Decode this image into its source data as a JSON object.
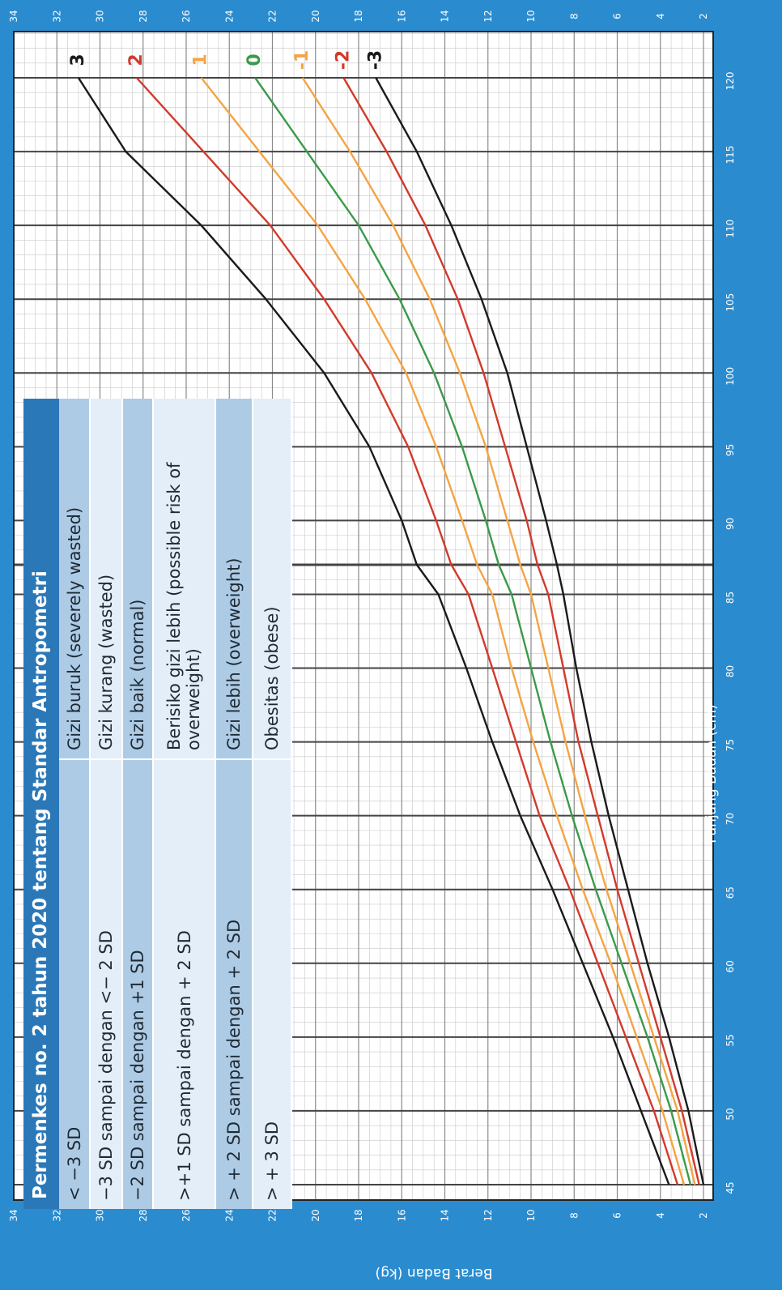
{
  "chart_data": {
    "type": "line",
    "xlabel": "Panjang Badan (cm)",
    "ylabel": "Berat Badan (kg)",
    "xlim": [
      45,
      120
    ],
    "ylim": [
      2,
      34
    ],
    "x_ticks": [
      45,
      50,
      55,
      60,
      65,
      70,
      75,
      80,
      85,
      90,
      95,
      100,
      105,
      110,
      115,
      120
    ],
    "y_ticks": [
      2,
      4,
      6,
      8,
      10,
      12,
      14,
      16,
      18,
      20,
      22,
      24,
      26,
      28,
      30,
      32,
      34
    ],
    "orientation": "rotated-90",
    "grid": true,
    "x": [
      45,
      50,
      55,
      60,
      65,
      70,
      75,
      80,
      85,
      87,
      90,
      95,
      100,
      105,
      110,
      115,
      120
    ],
    "series": [
      {
        "name": "3",
        "color": "#1a1a1a",
        "values": [
          3.6,
          4.9,
          6.2,
          7.6,
          9.0,
          10.5,
          11.8,
          13.0,
          14.3,
          15.3,
          16.0,
          17.5,
          19.6,
          22.3,
          25.3,
          28.8,
          31.0
        ]
      },
      {
        "name": "2",
        "color": "#d23a2c",
        "values": [
          3.2,
          4.3,
          5.6,
          6.9,
          8.2,
          9.6,
          10.7,
          11.8,
          12.9,
          13.7,
          14.4,
          15.7,
          17.4,
          19.6,
          22.1,
          25.2,
          28.3
        ]
      },
      {
        "name": "1",
        "color": "#f4a443",
        "values": [
          2.9,
          3.9,
          5.1,
          6.3,
          7.6,
          8.8,
          9.9,
          10.9,
          11.8,
          12.5,
          13.2,
          14.4,
          15.8,
          17.7,
          19.9,
          22.6,
          25.3
        ]
      },
      {
        "name": "0",
        "color": "#3b9a4a",
        "values": [
          2.6,
          3.5,
          4.6,
          5.8,
          7.0,
          8.1,
          9.1,
          10.0,
          10.9,
          11.5,
          12.1,
          13.2,
          14.5,
          16.1,
          18.0,
          20.4,
          22.8
        ]
      },
      {
        "name": "-1",
        "color": "#f4a443",
        "values": [
          2.4,
          3.2,
          4.3,
          5.4,
          6.5,
          7.5,
          8.4,
          9.2,
          10.0,
          10.5,
          11.1,
          12.1,
          13.3,
          14.7,
          16.4,
          18.4,
          20.6
        ]
      },
      {
        "name": "-2",
        "color": "#d23a2c",
        "values": [
          2.2,
          3.0,
          4.0,
          5.0,
          6.0,
          6.9,
          7.8,
          8.5,
          9.2,
          9.7,
          10.2,
          11.2,
          12.2,
          13.4,
          14.9,
          16.7,
          18.7
        ]
      },
      {
        "name": "-3",
        "color": "#1a1a1a",
        "values": [
          2.0,
          2.7,
          3.6,
          4.6,
          5.5,
          6.4,
          7.2,
          7.9,
          8.5,
          8.8,
          9.3,
          10.2,
          11.1,
          12.3,
          13.7,
          15.3,
          17.2
        ]
      }
    ]
  },
  "table": {
    "title": "Permenkes no. 2 tahun 2020 tentang Standar Antropometri",
    "rows": [
      {
        "sd": "< −3 SD",
        "category": "Gizi buruk (severely wasted)"
      },
      {
        "sd": "−3 SD sampai dengan <− 2 SD",
        "category": "Gizi kurang (wasted)"
      },
      {
        "sd": "−2 SD sampai dengan +1 SD",
        "category": "Gizi baik (normal)"
      },
      {
        "sd": ">+1 SD sampai dengan + 2 SD",
        "category": "Berisiko gizi lebih (possible risk of overweight)"
      },
      {
        "sd": "> + 2 SD sampai dengan + 2 SD",
        "category": "Gizi lebih (overweight)"
      },
      {
        "sd": "> + 3 SD",
        "category": "Obesitas (obese)"
      }
    ]
  }
}
